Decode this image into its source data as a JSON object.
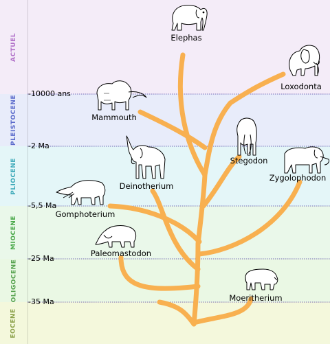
{
  "eras": [
    {
      "label": "ACTUEL",
      "color": "#f4ecf8",
      "label_color": "#b070c8"
    },
    {
      "label": "PLEISTOCENE",
      "color": "#e8ecfa",
      "label_color": "#5a6acb"
    },
    {
      "label": "PLIOCENE",
      "color": "#e4f6f8",
      "label_color": "#3aa8b8"
    },
    {
      "label": "MIOCENE",
      "color": "#eaf8ea",
      "label_color": "#4aa84a"
    },
    {
      "label": "OLIGOCENE",
      "color": "#eaf8e4",
      "label_color": "#52a04a"
    },
    {
      "label": "EOCENE",
      "color": "#f4f8dc",
      "label_color": "#8aa048"
    }
  ],
  "time_markers": [
    "-10000 ans",
    "-2 Ma",
    "-5,5 Ma",
    "-25 Ma",
    "-35 Ma"
  ],
  "taxa": {
    "elephas": "Elephas",
    "loxodonta": "Loxodonta",
    "mammouth": "Mammouth",
    "stegodon": "Stegodon",
    "deinotherium": "Deinotherium",
    "zygolophodon": "Zygolophodon",
    "gomphoterium": "Gomphoterium",
    "paleomastodon": "Paleomastodon",
    "moeritherium": "Moeritherium"
  },
  "colors": {
    "branch": "#f8b050",
    "marker_line": "#4a3aa0",
    "outline": "#000000"
  }
}
